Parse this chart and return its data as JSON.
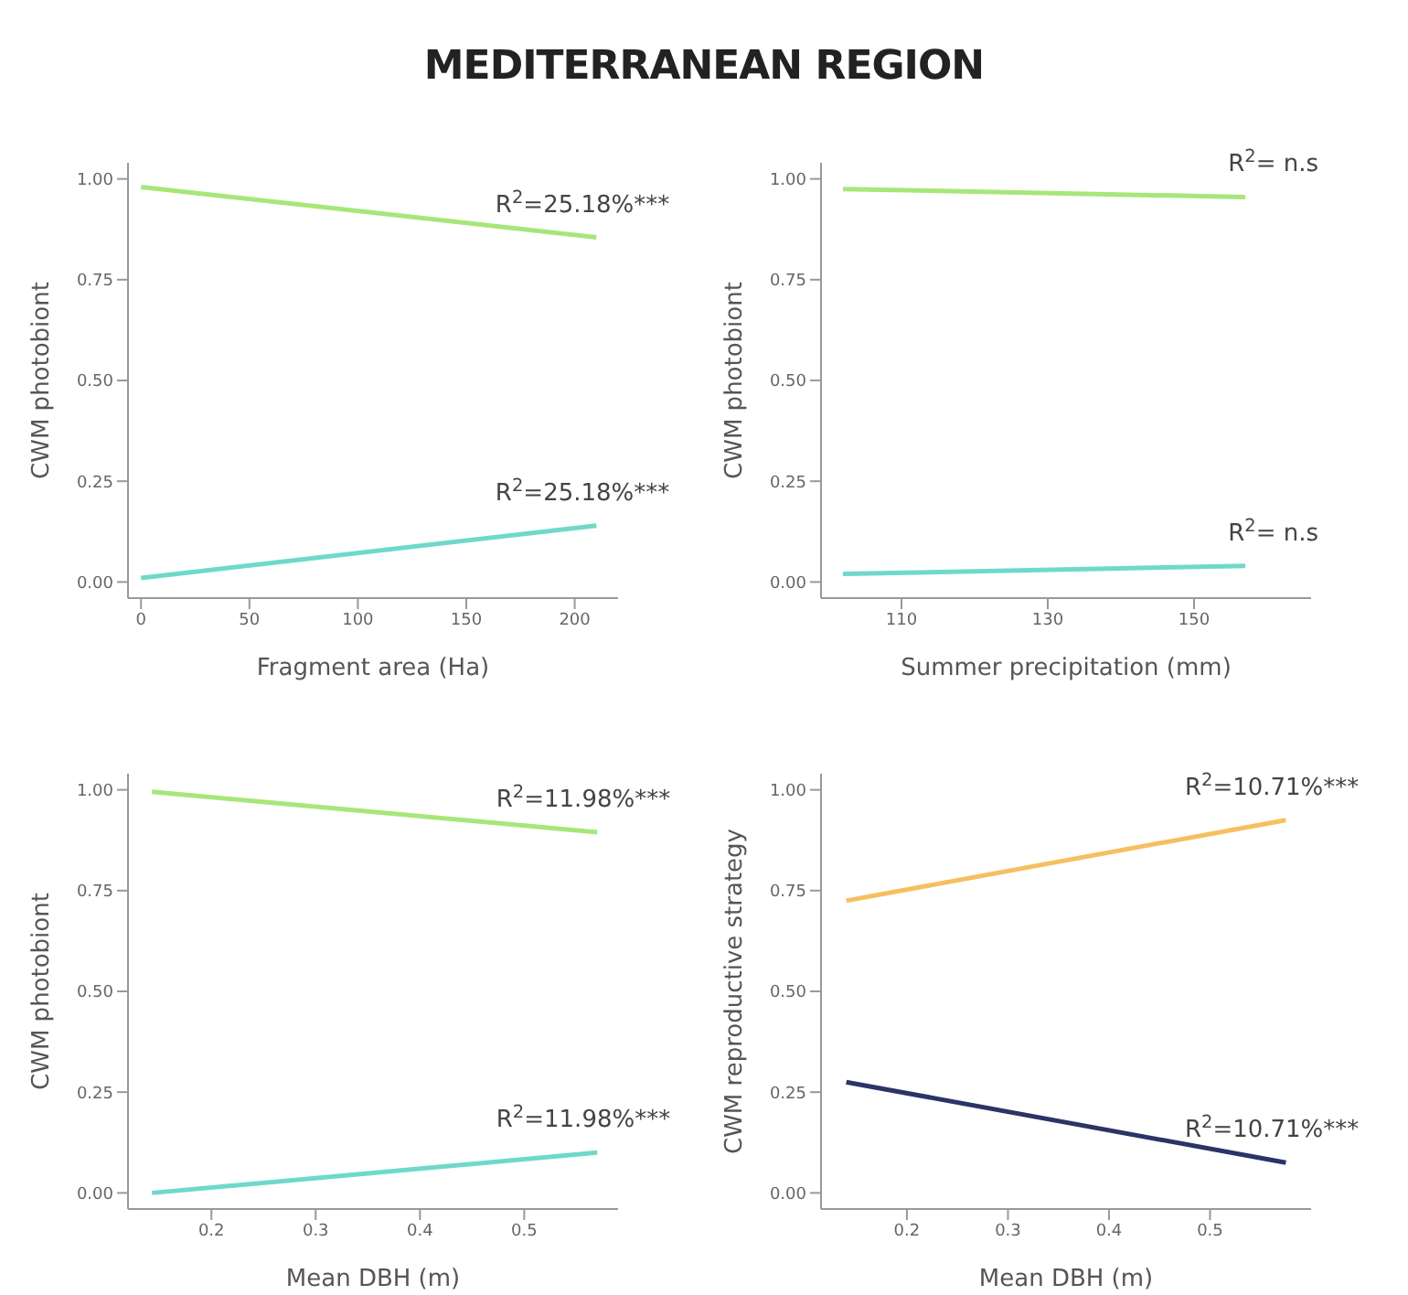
{
  "chart_data": [
    {
      "type": "line",
      "title": "MEDITERRANEAN REGION",
      "xlabel": "Fragment area (Ha)",
      "ylabel": "CWM photobiont",
      "xlim": [
        -6,
        220
      ],
      "xticks": [
        0,
        50,
        100,
        150,
        200
      ],
      "ylim": [
        -0.04,
        1.04
      ],
      "yticks": [
        {
          "value": 0,
          "label": "0.00"
        },
        {
          "value": 0.25,
          "label": "0.25"
        },
        {
          "value": 0.5,
          "label": "0.50"
        },
        {
          "value": 0.75,
          "label": "0.75"
        },
        {
          "value": 1,
          "label": "1.00"
        }
      ],
      "marker": "none",
      "series": [
        {
          "color": "#a8e67a",
          "x": [
            0,
            210
          ],
          "values": [
            0.98,
            0.855
          ]
        },
        {
          "color": "#6fd9c9",
          "x": [
            0,
            210
          ],
          "values": [
            0.01,
            0.14
          ]
        }
      ],
      "annotations": [
        "R$^{2}$=25.18%***",
        "R$^{2}$=25.18%***"
      ]
    },
    {
      "type": "line",
      "xlabel": "Summer precipitation (mm)",
      "ylabel": "CWM photobiont",
      "xlim": [
        99,
        166
      ],
      "xticks": [
        110,
        130,
        150
      ],
      "ylim": [
        -0.04,
        1.04
      ],
      "yticks": [
        {
          "value": 0,
          "label": "0.00"
        },
        {
          "value": 0.25,
          "label": "0.25"
        },
        {
          "value": 0.5,
          "label": "0.50"
        },
        {
          "value": 0.75,
          "label": "0.75"
        },
        {
          "value": 1,
          "label": "1.00"
        }
      ],
      "marker": "none",
      "series": [
        {
          "color": "#a8e67a",
          "x": [
            102,
            157
          ],
          "values": [
            0.975,
            0.955
          ]
        },
        {
          "color": "#6fd9c9",
          "x": [
            102,
            157
          ],
          "values": [
            0.02,
            0.04
          ]
        }
      ],
      "annotations": [
        "R$^{2}$= n.s",
        "R$^{2}$= n.s"
      ]
    },
    {
      "type": "line",
      "xlabel": "Mean DBH (m)",
      "ylabel": "CWM photobiont",
      "xlim": [
        0.12,
        0.59
      ],
      "xticks": [
        0.2,
        0.3,
        0.4,
        0.5
      ],
      "ylim": [
        -0.04,
        1.04
      ],
      "yticks": [
        {
          "value": 0,
          "label": "0.00"
        },
        {
          "value": 0.25,
          "label": "0.25"
        },
        {
          "value": 0.5,
          "label": "0.50"
        },
        {
          "value": 0.75,
          "label": "0.75"
        },
        {
          "value": 1,
          "label": "1.00"
        }
      ],
      "marker": "none",
      "series": [
        {
          "color": "#a8e67a",
          "x": [
            0.143,
            0.57
          ],
          "values": [
            0.995,
            0.895
          ]
        },
        {
          "color": "#6fd9c9",
          "x": [
            0.143,
            0.57
          ],
          "values": [
            0.0,
            0.1
          ]
        }
      ],
      "annotations": [
        "R$^{2}$=11.98%***",
        "R$^{2}$=11.98%***"
      ]
    },
    {
      "type": "line",
      "xlabel": "Mean DBH (m)",
      "ylabel": "CWM reproductive strategy",
      "xlim": [
        0.115,
        0.6
      ],
      "xticks": [
        0.2,
        0.3,
        0.4,
        0.5
      ],
      "ylim": [
        -0.04,
        1.04
      ],
      "yticks": [
        {
          "value": 0,
          "label": "0.00"
        },
        {
          "value": 0.25,
          "label": "0.25"
        },
        {
          "value": 0.5,
          "label": "0.50"
        },
        {
          "value": 0.75,
          "label": "0.75"
        },
        {
          "value": 1,
          "label": "1.00"
        }
      ],
      "marker": "none",
      "series": [
        {
          "color": "#f5c060",
          "x": [
            0.14,
            0.575
          ],
          "values": [
            0.725,
            0.925
          ]
        },
        {
          "color": "#2a3466",
          "x": [
            0.14,
            0.575
          ],
          "values": [
            0.275,
            0.075
          ]
        }
      ],
      "annotations": [
        "R$^{2}$=10.71%***",
        "R$^{2}$=10.71%***"
      ]
    }
  ]
}
